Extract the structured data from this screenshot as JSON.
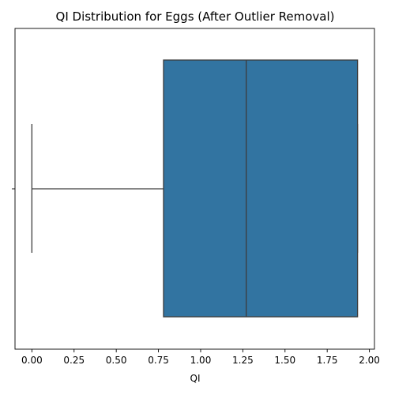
{
  "chart_data": {
    "type": "box",
    "title": "QI Distribution for Eggs (After Outlier Removal)",
    "xlabel": "QI",
    "ylabel": "",
    "xlim": [
      -0.1,
      2.03
    ],
    "xticks": [
      "0.00",
      "0.25",
      "0.50",
      "0.75",
      "1.00",
      "1.25",
      "1.50",
      "1.75",
      "2.00"
    ],
    "xtick_values": [
      0.0,
      0.25,
      0.5,
      0.75,
      1.0,
      1.25,
      1.5,
      1.75,
      2.0
    ],
    "orientation": "horizontal",
    "box": {
      "whisker_low": 0.0,
      "q1": 0.78,
      "median": 1.27,
      "q3": 1.93,
      "whisker_high": 1.93
    },
    "grid": false,
    "box_color": "#3274a1",
    "line_color": "#3d3d3d"
  }
}
